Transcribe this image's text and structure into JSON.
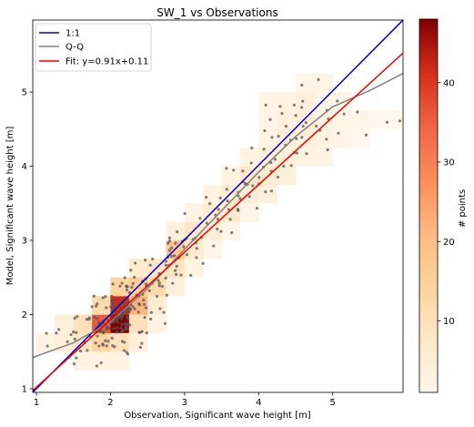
{
  "chart_data": {
    "type": "scatter",
    "title": "SW_1 vs Observations",
    "xlabel": "Observation, Significant wave height [m]",
    "ylabel": "Model, Significant wave height [m]",
    "xlim": [
      0.95,
      5.95
    ],
    "ylim": [
      0.95,
      5.97
    ],
    "xticks": [
      "1",
      "2",
      "3",
      "4",
      "5"
    ],
    "yticks": [
      "1",
      "2",
      "3",
      "4",
      "5"
    ],
    "grid": false,
    "legend_position": "top-left",
    "series": [
      {
        "name": "1:1",
        "color": "#0000cc",
        "points": [
          [
            0.95,
            0.95
          ],
          [
            5.95,
            5.97
          ]
        ]
      },
      {
        "name": "Q-Q",
        "color": "#808080",
        "points": [
          [
            0.95,
            1.42
          ],
          [
            1.5,
            1.62
          ],
          [
            2.0,
            1.9
          ],
          [
            2.5,
            2.35
          ],
          [
            3.0,
            2.88
          ],
          [
            3.5,
            3.4
          ],
          [
            4.0,
            3.92
          ],
          [
            4.5,
            4.4
          ],
          [
            5.0,
            4.8
          ],
          [
            5.5,
            5.02
          ],
          [
            5.95,
            5.25
          ]
        ]
      },
      {
        "name": "Fit: y=0.91x+0.11",
        "color": "#ee0000",
        "slope": 0.91,
        "intercept": 0.11
      }
    ],
    "heatmap": {
      "bin_width": 0.25,
      "bin_height": 0.25,
      "bins": [
        [
          1.0,
          1.5,
          3
        ],
        [
          1.25,
          1.5,
          5
        ],
        [
          1.25,
          1.75,
          4
        ],
        [
          1.5,
          1.5,
          8
        ],
        [
          1.5,
          1.75,
          10
        ],
        [
          1.5,
          1.25,
          3
        ],
        [
          1.75,
          1.5,
          14
        ],
        [
          1.75,
          1.75,
          36
        ],
        [
          1.75,
          2.0,
          12
        ],
        [
          1.75,
          1.25,
          3
        ],
        [
          2.0,
          1.75,
          48
        ],
        [
          2.0,
          2.0,
          42
        ],
        [
          2.0,
          1.5,
          10
        ],
        [
          2.0,
          2.25,
          14
        ],
        [
          2.0,
          1.25,
          3
        ],
        [
          2.25,
          1.75,
          10
        ],
        [
          2.25,
          2.0,
          22
        ],
        [
          2.25,
          2.25,
          16
        ],
        [
          2.25,
          1.5,
          4
        ],
        [
          2.25,
          2.5,
          6
        ],
        [
          2.5,
          2.0,
          6
        ],
        [
          2.5,
          2.25,
          12
        ],
        [
          2.5,
          2.5,
          8
        ],
        [
          2.5,
          1.75,
          3
        ],
        [
          2.75,
          2.25,
          4
        ],
        [
          2.75,
          2.5,
          9
        ],
        [
          2.75,
          2.75,
          18
        ],
        [
          2.75,
          3.0,
          4
        ],
        [
          3.0,
          2.75,
          6
        ],
        [
          3.0,
          3.0,
          8
        ],
        [
          3.0,
          2.5,
          3
        ],
        [
          3.0,
          3.25,
          3
        ],
        [
          3.25,
          3.0,
          5
        ],
        [
          3.25,
          3.25,
          6
        ],
        [
          3.25,
          3.5,
          3
        ],
        [
          3.25,
          2.75,
          2
        ],
        [
          3.5,
          3.25,
          7
        ],
        [
          3.5,
          3.5,
          6
        ],
        [
          3.5,
          3.75,
          3
        ],
        [
          3.5,
          3.0,
          2
        ],
        [
          3.75,
          3.5,
          5
        ],
        [
          3.75,
          3.75,
          8
        ],
        [
          3.75,
          4.0,
          3
        ],
        [
          3.75,
          3.25,
          2
        ],
        [
          4.0,
          3.5,
          4
        ],
        [
          4.0,
          3.75,
          6
        ],
        [
          4.0,
          4.0,
          5
        ],
        [
          4.0,
          4.25,
          3
        ],
        [
          4.0,
          4.5,
          2
        ],
        [
          4.0,
          4.75,
          2
        ],
        [
          4.25,
          3.75,
          4
        ],
        [
          4.25,
          4.0,
          4
        ],
        [
          4.25,
          4.25,
          5
        ],
        [
          4.25,
          4.5,
          4
        ],
        [
          4.25,
          4.75,
          3
        ],
        [
          4.5,
          4.0,
          3
        ],
        [
          4.5,
          4.25,
          4
        ],
        [
          4.5,
          4.5,
          5
        ],
        [
          4.5,
          4.75,
          4
        ],
        [
          4.5,
          5.0,
          2
        ],
        [
          4.75,
          4.0,
          2
        ],
        [
          4.75,
          4.25,
          3
        ],
        [
          4.75,
          4.5,
          3
        ],
        [
          4.75,
          4.75,
          2
        ],
        [
          4.75,
          5.0,
          2
        ],
        [
          5.0,
          4.25,
          2
        ],
        [
          5.0,
          4.5,
          2
        ],
        [
          5.0,
          4.75,
          2
        ],
        [
          5.25,
          4.5,
          2
        ],
        [
          5.25,
          4.25,
          1
        ],
        [
          5.5,
          4.5,
          1
        ],
        [
          5.75,
          4.5,
          1
        ]
      ]
    },
    "colorbar": {
      "label": "# points",
      "min": 1,
      "max": 48,
      "ticks": [
        "10",
        "20",
        "30",
        "40"
      ],
      "cmap": "OrRd"
    }
  }
}
